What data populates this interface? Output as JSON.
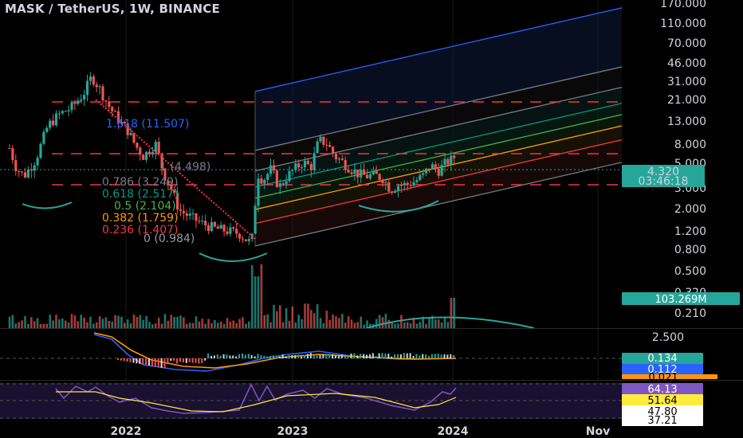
{
  "header": {
    "title": "MASK / TetherUS, 1W, BINANCE"
  },
  "colors": {
    "up": "#26a69a",
    "down": "#ef5350",
    "fib_top": "#2962ff",
    "volume_tag": "#26a69a",
    "macd_tag": "#26a69a",
    "signal_tag": "#2962ff",
    "rsi_tag": "#7e57c2",
    "rsi_ma_tag": "#ffeb3b",
    "dash_red": "#f23645"
  },
  "chart_data": [
    {
      "type": "candlestick",
      "name": "price",
      "y_scale": "log",
      "y_ticks": [
        "170.000",
        "110.000",
        "70.000",
        "46.000",
        "31.000",
        "21.000",
        "13.000",
        "8.000",
        "5.000",
        "3.000",
        "2.000",
        "1.200",
        "0.800",
        "0.500",
        "0.320",
        "0.210"
      ],
      "x_ticks": [
        "2022",
        "2023",
        "2024",
        "Nov"
      ],
      "last_price": "4.320",
      "countdown": "03:46:18",
      "fib_levels": [
        {
          "label": "1.618 (11.507)",
          "ratio": 1.618
        },
        {
          "label": "1 (4.498)",
          "ratio": 1
        },
        {
          "label": "0.786 (3.249)",
          "ratio": 0.786
        },
        {
          "label": "0.618 (2.517)",
          "ratio": 0.618
        },
        {
          "label": "0.5 (2.104)",
          "ratio": 0.5
        },
        {
          "label": "0.382 (1.759)",
          "ratio": 0.382
        },
        {
          "label": "0.236 (1.407)",
          "ratio": 0.236
        },
        {
          "label": "0 (0.984)",
          "ratio": 0
        }
      ]
    },
    {
      "type": "bar",
      "name": "volume",
      "last_value": "103.269M"
    },
    {
      "type": "line",
      "name": "macd",
      "y_ticks": [
        "2.500"
      ],
      "macd_value": "0.134",
      "signal_value": "0.112",
      "hist_value": "0.021"
    },
    {
      "type": "line",
      "name": "rsi",
      "rsi_value": "64.13",
      "rsi_ma_value": "51.64",
      "y_ticks": [
        "47.80",
        "37.21"
      ]
    }
  ]
}
